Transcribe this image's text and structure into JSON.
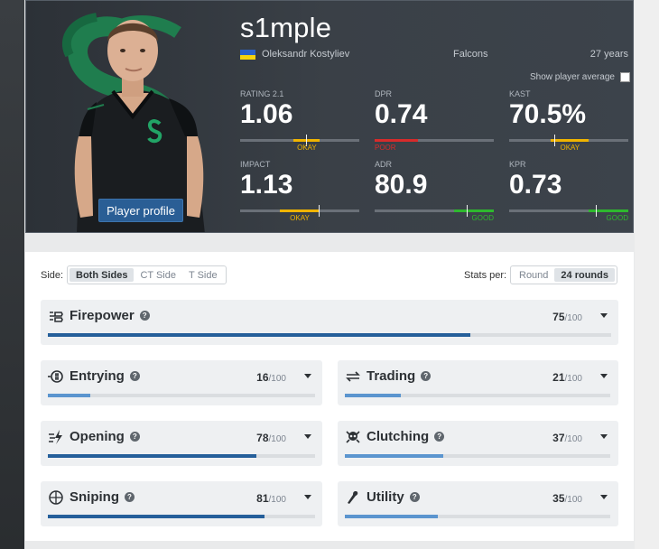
{
  "player": {
    "nickname": "s1mple",
    "real_name": "Oleksandr Kostyliev",
    "team": "Falcons",
    "age": "27 years",
    "profile_button": "Player profile",
    "show_average_label": "Show player average"
  },
  "stats": [
    {
      "label": "Rating 2.1",
      "value": "1.06",
      "verdict": "OKAY",
      "fill_from": 0.45,
      "fill_to": 0.67,
      "marker": 0.55,
      "color": "#f0b400",
      "verdict_color": "#f0b400",
      "verdict_align": "center"
    },
    {
      "label": "DPR",
      "value": "0.74",
      "verdict": "POOR",
      "fill_from": 0.0,
      "fill_to": 0.36,
      "marker": -1,
      "color": "#d72b2b",
      "verdict_color": "#d72b2b",
      "verdict_align": "left"
    },
    {
      "label": "KAST",
      "value": "70.5%",
      "verdict": "OKAY",
      "fill_from": 0.35,
      "fill_to": 0.67,
      "marker": 0.38,
      "color": "#f0b400",
      "verdict_color": "#f0b400",
      "verdict_align": "center"
    },
    {
      "label": "Impact",
      "value": "1.13",
      "verdict": "OKAY",
      "fill_from": 0.33,
      "fill_to": 0.67,
      "marker": 0.66,
      "color": "#f0b400",
      "verdict_color": "#f0b400",
      "verdict_align": "center"
    },
    {
      "label": "ADR",
      "value": "80.9",
      "verdict": "GOOD",
      "fill_from": 0.67,
      "fill_to": 1.0,
      "marker": 0.77,
      "color": "#2eb82e",
      "verdict_color": "#2eb82e",
      "verdict_align": "right"
    },
    {
      "label": "KPR",
      "value": "0.73",
      "verdict": "GOOD",
      "fill_from": 0.67,
      "fill_to": 1.0,
      "marker": 0.73,
      "color": "#2eb82e",
      "verdict_color": "#2eb82e",
      "verdict_align": "right"
    }
  ],
  "filters": {
    "side_label": "Side:",
    "side_options": [
      "Both Sides",
      "CT Side",
      "T Side"
    ],
    "side_active": 0,
    "stats_per_label": "Stats per:",
    "stats_per_options": [
      "Round",
      "24 rounds"
    ],
    "stats_per_active": 1
  },
  "categories": [
    {
      "name": "Firepower",
      "score": "75",
      "max": "/100",
      "fill": 0.75,
      "icon": "firepower-icon"
    },
    {
      "name": "Entrying",
      "score": "16",
      "max": "/100",
      "fill": 0.16,
      "icon": "entrying-icon"
    },
    {
      "name": "Trading",
      "score": "21",
      "max": "/100",
      "fill": 0.21,
      "icon": "trading-icon"
    },
    {
      "name": "Opening",
      "score": "78",
      "max": "/100",
      "fill": 0.78,
      "icon": "opening-icon"
    },
    {
      "name": "Clutching",
      "score": "37",
      "max": "/100",
      "fill": 0.37,
      "icon": "clutching-icon"
    },
    {
      "name": "Sniping",
      "score": "81",
      "max": "/100",
      "fill": 0.81,
      "icon": "sniping-icon"
    },
    {
      "name": "Utility",
      "score": "35",
      "max": "/100",
      "fill": 0.35,
      "icon": "utility-icon"
    }
  ],
  "colors": {
    "dark_bar": "#255f9a",
    "light_bar": "#5b95cf",
    "accent_green": "#1e7a4f"
  }
}
